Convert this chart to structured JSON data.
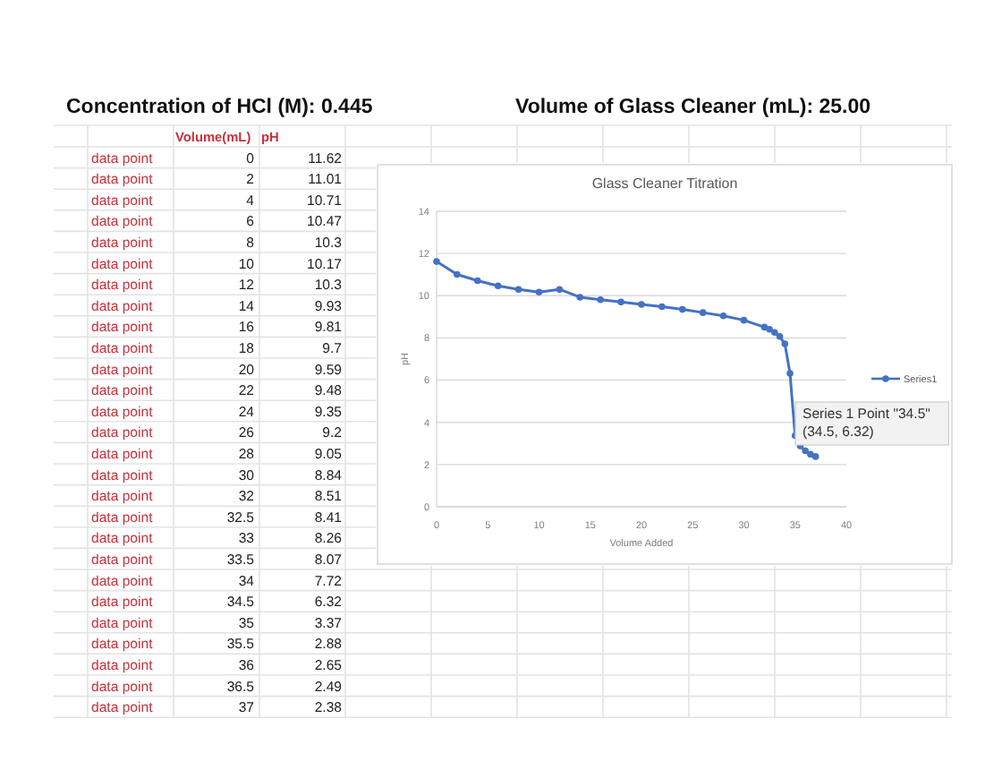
{
  "chart_data": [
    {
      "type": "other",
      "title": "Concentration of HCl (M): 0.445",
      "data_labels": true,
      "categories": [
        "data point",
        "data point",
        "data point",
        "data point",
        "data point",
        "data point",
        "data point",
        "data point",
        "data point",
        "data point",
        "data point",
        "data point",
        "data point",
        "data point",
        "data point",
        "data point",
        "data point",
        "data point",
        "data point",
        "data point",
        "data point",
        "data point",
        "data point",
        "data point",
        "data point",
        "data point",
        "data point"
      ],
      "series": [
        {
          "name": "Volume(mL)",
          "values": [
            0,
            2,
            4,
            6,
            8,
            10,
            12,
            14,
            16,
            18,
            20,
            22,
            24,
            26,
            28,
            30,
            32,
            32.5,
            33,
            33.5,
            34,
            34.5,
            35,
            35.5,
            36,
            36.5,
            37
          ]
        },
        {
          "name": "pH",
          "values": [
            11.62,
            11.01,
            10.71,
            10.47,
            10.3,
            10.17,
            10.3,
            9.93,
            9.81,
            9.7,
            9.59,
            9.48,
            9.35,
            9.2,
            9.05,
            8.84,
            8.51,
            8.41,
            8.26,
            8.07,
            7.72,
            6.32,
            3.37,
            2.88,
            2.65,
            2.49,
            2.38
          ]
        }
      ]
    },
    {
      "type": "line",
      "title": "Glass Cleaner Titration",
      "xlabel": "Volume Added",
      "ylabel": "pH",
      "x": [
        0,
        2,
        4,
        6,
        8,
        10,
        12,
        14,
        16,
        18,
        20,
        22,
        24,
        26,
        28,
        30,
        32,
        32.5,
        33,
        33.5,
        34,
        34.5,
        35,
        35.5,
        36,
        36.5,
        37
      ],
      "series": [
        {
          "name": "Series1",
          "color": "#4472c4",
          "values": [
            11.62,
            11.01,
            10.71,
            10.47,
            10.3,
            10.17,
            10.3,
            9.93,
            9.81,
            9.7,
            9.59,
            9.48,
            9.35,
            9.2,
            9.05,
            8.84,
            8.51,
            8.41,
            8.26,
            8.07,
            7.72,
            6.32,
            3.37,
            2.88,
            2.65,
            2.49,
            2.38
          ]
        }
      ],
      "xlim": [
        0,
        40
      ],
      "xticks": [
        0,
        5,
        10,
        15,
        20,
        25,
        30,
        35,
        40
      ],
      "ylim": [
        0,
        14
      ],
      "yticks": [
        0,
        2,
        4,
        6,
        8,
        10,
        12,
        14
      ],
      "grid": "y",
      "legend": "right",
      "marker": "circle",
      "line_style": "solid",
      "annotations": [
        "Volume of Glass Cleaner (mL): 25.00",
        {
          "text": "Series 1 Point \"34.5\"\n(34.5, 6.32)",
          "x": 34.5,
          "y": 6.32
        }
      ]
    }
  ]
}
